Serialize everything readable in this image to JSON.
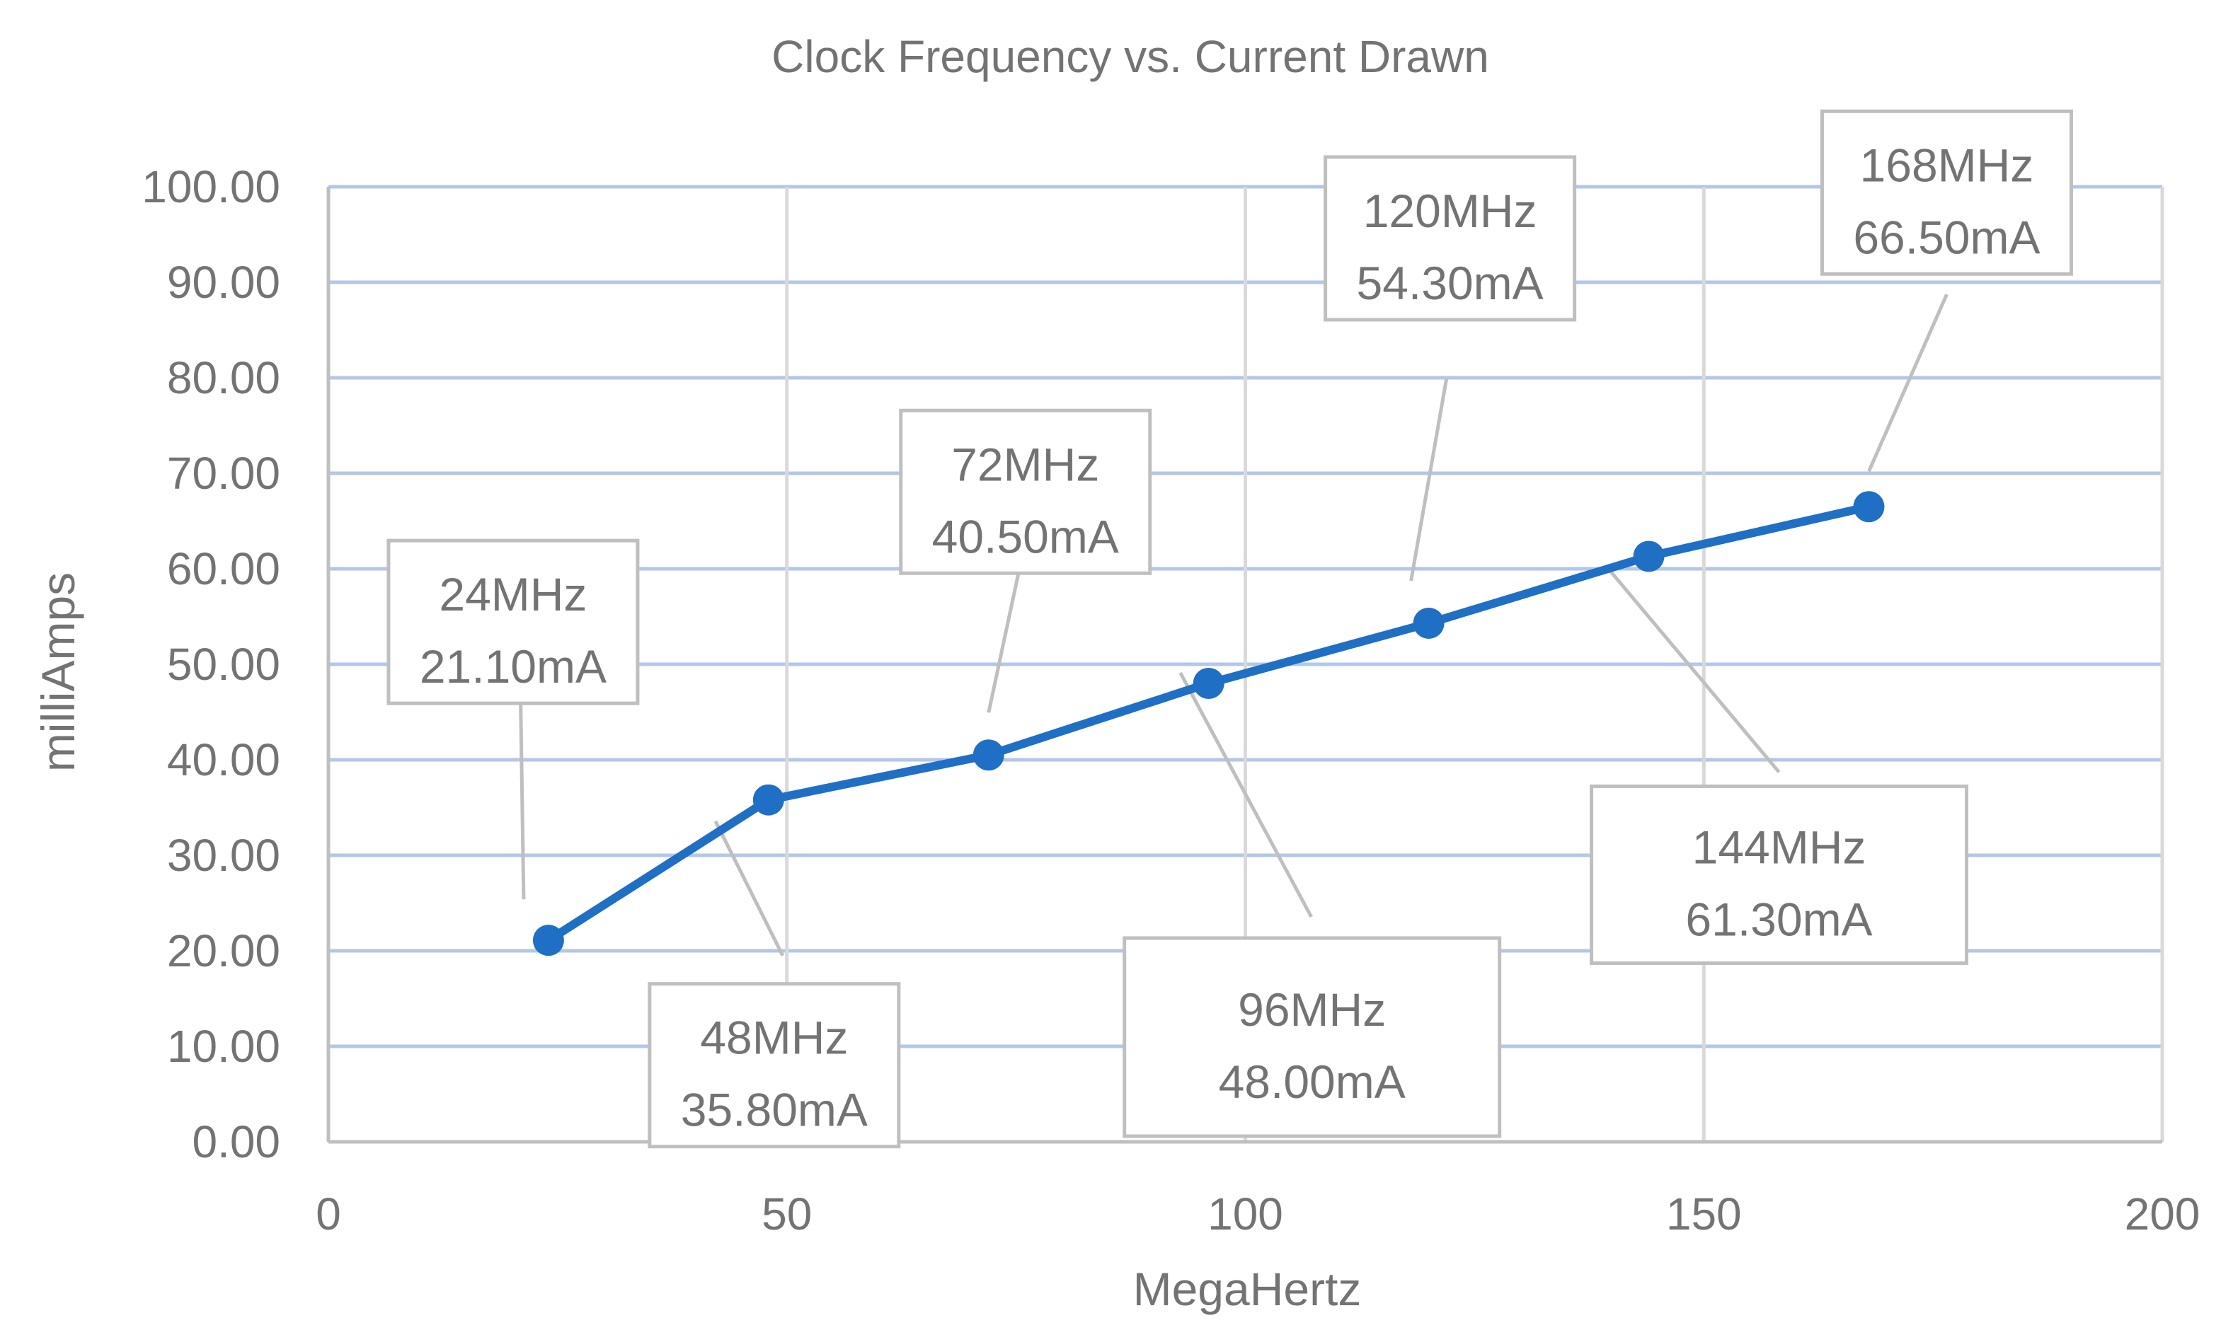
{
  "chart_data": {
    "type": "line",
    "title": "Clock Frequency vs. Current Drawn",
    "xlabel": "MegaHertz",
    "ylabel": "milliAmps",
    "xlim": [
      0,
      200
    ],
    "ylim": [
      0,
      100
    ],
    "x_ticks": [
      0,
      50,
      100,
      150,
      200
    ],
    "x_tick_labels": [
      "0",
      "50",
      "100",
      "150",
      "200"
    ],
    "y_ticks": [
      0,
      10,
      20,
      30,
      40,
      50,
      60,
      70,
      80,
      90,
      100
    ],
    "y_tick_labels": [
      "0.00",
      "10.00",
      "20.00",
      "30.00",
      "40.00",
      "50.00",
      "60.00",
      "70.00",
      "80.00",
      "90.00",
      "100.00"
    ],
    "grid": true,
    "legend": "none",
    "series": [
      {
        "color": "#1f6fc5",
        "points": [
          {
            "x": 24,
            "y": 21.1,
            "label_line1": "24MHz",
            "label_line2": "21.10mA",
            "label_position": "above"
          },
          {
            "x": 48,
            "y": 35.8,
            "label_line1": "48MHz",
            "label_line2": "35.80mA",
            "label_position": "below"
          },
          {
            "x": 72,
            "y": 40.5,
            "label_line1": "72MHz",
            "label_line2": "40.50mA",
            "label_position": "above"
          },
          {
            "x": 96,
            "y": 48.0,
            "label_line1": "96MHz",
            "label_line2": "48.00mA",
            "label_position": "below"
          },
          {
            "x": 120,
            "y": 54.3,
            "label_line1": "120MHz",
            "label_line2": "54.30mA",
            "label_position": "above"
          },
          {
            "x": 144,
            "y": 61.3,
            "label_line1": "144MHz",
            "label_line2": "61.30mA",
            "label_position": "below"
          },
          {
            "x": 168,
            "y": 66.5,
            "label_line1": "168MHz",
            "label_line2": "66.50mA",
            "label_position": "above"
          }
        ]
      }
    ]
  }
}
